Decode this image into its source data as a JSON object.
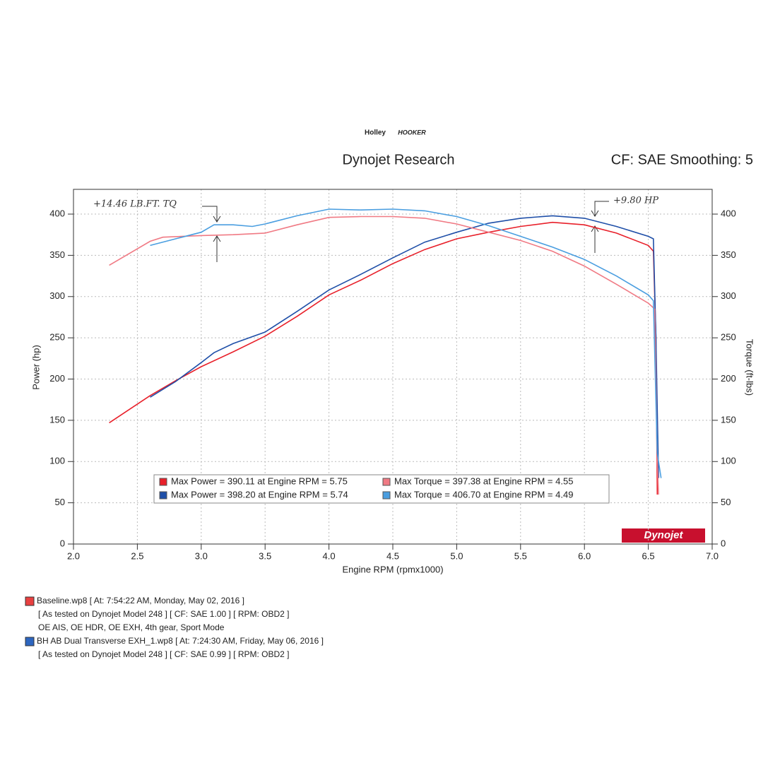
{
  "chart_data": {
    "type": "line",
    "logo": [
      "Holley",
      "HOOKER"
    ],
    "title": "Dynojet Research",
    "subtitle": "CF: SAE Smoothing: 5",
    "xlabel": "Engine RPM (rpmx1000)",
    "ylabel": "Power (hp)",
    "y2label": "Torque (ft-lbs)",
    "brand": "Dynojet",
    "annotations": [
      "+14.46 LB.FT. TQ",
      "+9.80 HP"
    ],
    "xlim": [
      2,
      7
    ],
    "xticks": [
      {
        "value": 2,
        "label": "2.0"
      },
      2.5,
      {
        "value": 3,
        "label": "3.0"
      },
      3.5,
      {
        "value": 4,
        "label": "4.0"
      },
      4.5,
      {
        "value": 5,
        "label": "5.0"
      },
      5.5,
      {
        "value": 6,
        "label": "6.0"
      },
      6.5,
      {
        "value": 7,
        "label": "7.0"
      }
    ],
    "ylim": [
      0,
      430
    ],
    "yticks": [
      0,
      50,
      100,
      150,
      200,
      250,
      300,
      350,
      400
    ],
    "y2lim": [
      0,
      430
    ],
    "y2ticks": [
      0,
      50,
      100,
      150,
      200,
      250,
      300,
      350,
      400
    ],
    "grid": true,
    "series": [
      {
        "name": "Max Power = 390.11 at Engine RPM = 5.75",
        "color": "#e8202a",
        "x": [
          2.28,
          2.6,
          2.8,
          3.0,
          3.25,
          3.5,
          3.75,
          4.0,
          4.25,
          4.5,
          4.75,
          5.0,
          5.25,
          5.5,
          5.75,
          6.0,
          6.25,
          6.5,
          6.54,
          6.56,
          6.57
        ],
        "values": [
          147,
          180,
          198,
          215,
          233,
          252,
          276,
          302,
          320,
          340,
          357,
          370,
          378,
          385,
          390,
          387,
          377,
          362,
          355,
          250,
          60
        ]
      },
      {
        "name": "Max Power = 398.20 at Engine RPM = 5.74",
        "color": "#1f4fa8",
        "x": [
          2.6,
          2.8,
          3.0,
          3.1,
          3.25,
          3.5,
          3.75,
          4.0,
          4.25,
          4.5,
          4.75,
          5.0,
          5.25,
          5.5,
          5.75,
          6.0,
          6.25,
          6.5,
          6.54,
          6.56,
          6.58
        ],
        "values": [
          178,
          197,
          220,
          232,
          243,
          257,
          282,
          308,
          327,
          347,
          366,
          378,
          389,
          395,
          398,
          395,
          385,
          373,
          370,
          250,
          80
        ]
      },
      {
        "name": "Max Torque = 397.38 at Engine RPM = 4.55",
        "color": "#f07a84",
        "axis": "y2",
        "x": [
          2.28,
          2.6,
          2.7,
          3.0,
          3.25,
          3.5,
          3.75,
          4.0,
          4.25,
          4.5,
          4.75,
          5.0,
          5.25,
          5.5,
          5.75,
          6.0,
          6.25,
          6.5,
          6.55,
          6.57,
          6.58
        ],
        "values": [
          338,
          367,
          372,
          374,
          375,
          377,
          387,
          396,
          397,
          397,
          395,
          388,
          378,
          368,
          355,
          337,
          315,
          292,
          285,
          100,
          60
        ]
      },
      {
        "name": "Max Torque = 406.70 at Engine RPM = 4.49",
        "color": "#4a9ee0",
        "axis": "y2",
        "x": [
          2.6,
          2.8,
          3.0,
          3.1,
          3.25,
          3.4,
          3.5,
          3.75,
          4.0,
          4.25,
          4.5,
          4.75,
          5.0,
          5.25,
          5.5,
          5.75,
          6.0,
          6.25,
          6.5,
          6.54,
          6.57,
          6.6
        ],
        "values": [
          362,
          370,
          378,
          387,
          387,
          385,
          388,
          398,
          406,
          405,
          406,
          404,
          397,
          386,
          373,
          360,
          345,
          325,
          302,
          295,
          110,
          80
        ]
      }
    ]
  },
  "runs": [
    {
      "color": "#e84040",
      "file": "Baseline.wp8 [ At: 7:54:22 AM, Monday, May 02, 2016 ]",
      "lines": [
        "[ As tested on Dynojet Model 248 ]  [ CF: SAE 1.00 ]  [ RPM: OBD2 ]",
        "OE AIS, OE HDR, OE EXH, 4th gear, Sport Mode"
      ]
    },
    {
      "color": "#2d66c0",
      "file": "BH AB Dual Transverse EXH_1.wp8 [ At: 7:24:30 AM, Friday, May 06, 2016 ]",
      "lines": [
        "[ As tested on Dynojet Model 248 ]  [ CF: SAE 0.99 ]  [ RPM: OBD2 ]"
      ]
    }
  ]
}
